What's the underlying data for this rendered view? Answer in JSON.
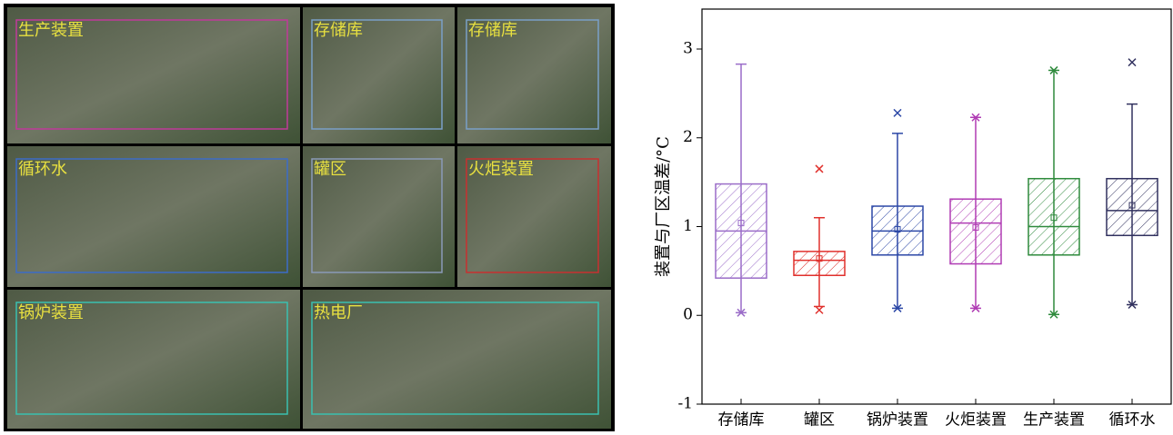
{
  "image_panels": [
    {
      "label": "生产装置"
    },
    {
      "label": "存储库"
    },
    {
      "label": "存储库"
    },
    {
      "label": "循环水"
    },
    {
      "label": "罐区"
    },
    {
      "label": "火炬装置"
    },
    {
      "label": "锅炉装置"
    },
    {
      "label": "热电厂"
    }
  ],
  "chart_data": {
    "type": "box",
    "ylabel": "装置与厂区温差/°C",
    "categories": [
      "存储库",
      "罐区",
      "锅炉装置",
      "火炬装置",
      "生产装置",
      "循环水"
    ],
    "ylim": [
      -1,
      3.45
    ],
    "yticks": [
      -1,
      0,
      1,
      2,
      3
    ],
    "series": [
      {
        "name": "存储库",
        "color": "#9a6cc8",
        "min": 0.03,
        "q1": 0.42,
        "median": 0.95,
        "q3": 1.48,
        "max": 2.83,
        "mean": 1.04,
        "extremes": [
          0.03
        ]
      },
      {
        "name": "罐区",
        "color": "#e0302c",
        "min": 0.1,
        "q1": 0.45,
        "median": 0.62,
        "q3": 0.72,
        "max": 1.1,
        "mean": 0.64,
        "extremes": [
          0.06,
          1.65
        ]
      },
      {
        "name": "锅炉装置",
        "color": "#2b47a6",
        "min": 0.08,
        "q1": 0.68,
        "median": 0.95,
        "q3": 1.23,
        "max": 2.05,
        "mean": 0.97,
        "extremes": [
          0.08,
          2.28
        ]
      },
      {
        "name": "火炬装置",
        "color": "#b03cb4",
        "min": 0.08,
        "q1": 0.58,
        "median": 1.04,
        "q3": 1.31,
        "max": 2.23,
        "mean": 0.99,
        "extremes": [
          0.08,
          2.23
        ]
      },
      {
        "name": "生产装置",
        "color": "#2e8a3c",
        "min": 0.01,
        "q1": 0.68,
        "median": 1.0,
        "q3": 1.54,
        "max": 2.76,
        "mean": 1.1,
        "extremes": [
          0.01,
          2.76
        ]
      },
      {
        "name": "循环水",
        "color": "#30305e",
        "min": 0.12,
        "q1": 0.9,
        "median": 1.18,
        "q3": 1.54,
        "max": 2.38,
        "mean": 1.24,
        "extremes": [
          0.12,
          2.85
        ]
      }
    ]
  }
}
